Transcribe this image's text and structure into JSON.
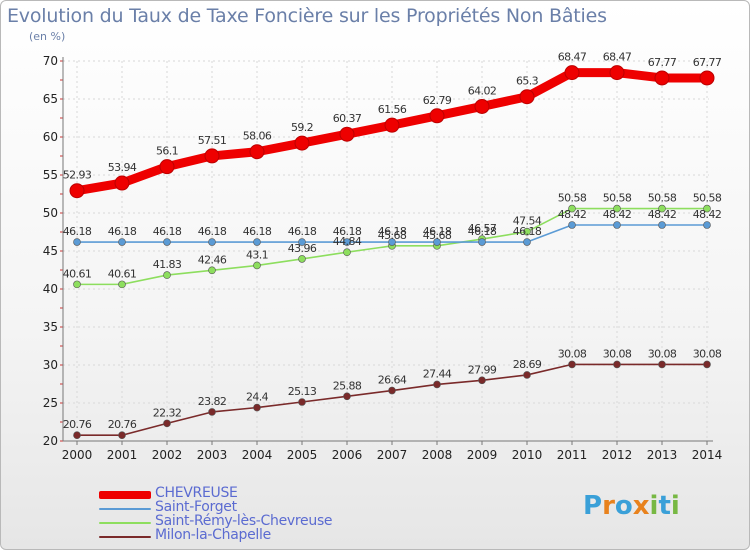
{
  "header": {
    "title": "Evolution du Taux de Taxe Foncière sur les Propriétés Non Bâties",
    "unit": "(en %)"
  },
  "colors": {
    "axis": "#777777",
    "grid": "#d8d8d8",
    "tick_label": "#222222",
    "title": "#6a7fa8",
    "legend_text": "#5b6bd1"
  },
  "logo": {
    "text": "Proxiti",
    "letter_colors": [
      "#3aa0d8",
      "#e8821d",
      "#3aa0d8",
      "#e8821d",
      "#77b843",
      "#3aa0d8",
      "#77b843"
    ]
  },
  "chart_data": {
    "type": "line",
    "x": [
      2000,
      2001,
      2002,
      2003,
      2004,
      2005,
      2006,
      2007,
      2008,
      2009,
      2010,
      2011,
      2012,
      2013,
      2014
    ],
    "ylim": [
      20,
      70
    ],
    "yticks": [
      20,
      25,
      30,
      35,
      40,
      45,
      50,
      55,
      60,
      65,
      70
    ],
    "grid": true,
    "legend_position": "bottom-left",
    "series": [
      {
        "name": "CHEVREUSE",
        "color": "#ee0000",
        "values": [
          52.93,
          53.94,
          56.1,
          57.51,
          58.06,
          59.2,
          60.37,
          61.56,
          62.79,
          64.02,
          65.3,
          68.47,
          68.47,
          67.77,
          67.77
        ],
        "labels": [
          "52.93",
          "53.94",
          "56.1",
          "57.51",
          "58.06",
          "59.2",
          "60.37",
          "61.56",
          "62.79",
          "64.02",
          "65.3",
          "68.47",
          "68.47",
          "67.77",
          "67.77"
        ]
      },
      {
        "name": "Saint-Forget",
        "color": "#5b9bd5",
        "values": [
          46.18,
          46.18,
          46.18,
          46.18,
          46.18,
          46.18,
          46.18,
          46.18,
          46.18,
          46.18,
          46.18,
          48.42,
          48.42,
          48.42,
          48.42
        ],
        "labels": [
          "46.18",
          "46.18",
          "46.18",
          "46.18",
          "46.18",
          "46.18",
          "46.18",
          "46.18",
          "46.18",
          "46.18",
          "46.18",
          "48.42",
          "48.42",
          "48.42",
          "48.42"
        ]
      },
      {
        "name": "Saint-Rémy-lès-Chevreuse",
        "color": "#8dde5e",
        "values": [
          40.61,
          40.61,
          41.83,
          42.46,
          43.1,
          43.96,
          44.84,
          45.68,
          45.68,
          46.57,
          47.54,
          50.58,
          50.58,
          50.58,
          50.58
        ],
        "labels": [
          "40.61",
          "40.61",
          "41.83",
          "42.46",
          "43.1",
          "43.96",
          "44.84",
          "45.68",
          "45.68",
          "46.57",
          "47.54",
          "50.58",
          "50.58",
          "50.58",
          "50.58"
        ]
      },
      {
        "name": "Milon-la-Chapelle",
        "color": "#7a2a2a",
        "values": [
          20.76,
          20.76,
          22.32,
          23.82,
          24.4,
          25.13,
          25.88,
          26.64,
          27.44,
          27.99,
          28.69,
          30.08,
          30.08,
          30.08,
          30.08
        ],
        "labels": [
          "20.76",
          "20.76",
          "22.32",
          "23.82",
          "24.4",
          "25.13",
          "25.88",
          "26.64",
          "27.44",
          "27.99",
          "28.69",
          "30.08",
          "30.08",
          "30.08",
          "30.08"
        ]
      }
    ]
  }
}
